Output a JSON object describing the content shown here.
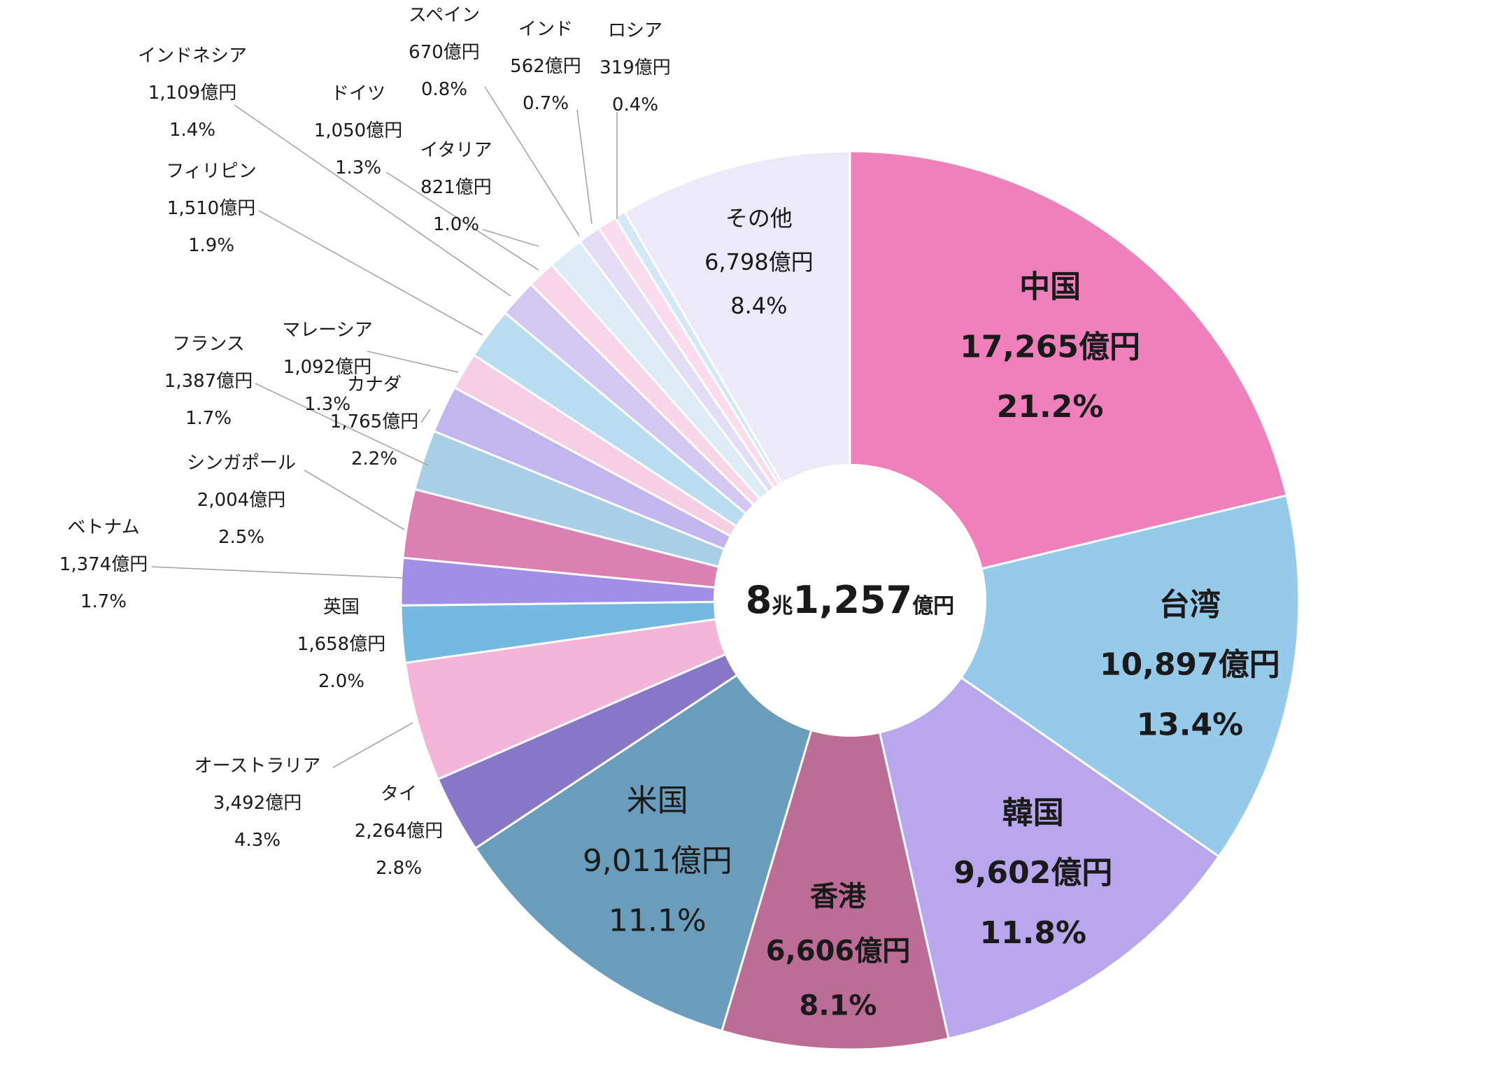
{
  "chart_data": {
    "type": "pie",
    "donut": true,
    "title": "",
    "center_label": {
      "main1": "8",
      "unit1": "兆",
      "main2": "1,257",
      "unit2": "億円"
    },
    "slices": [
      {
        "name": "中国",
        "value": 17265,
        "value_label": "17,265億円",
        "percent": "21.2%",
        "color": "#ef80bc"
      },
      {
        "name": "台湾",
        "value": 10897,
        "value_label": "10,897億円",
        "percent": "13.4%",
        "color": "#96caea"
      },
      {
        "name": "韓国",
        "value": 9602,
        "value_label": "9,602億円",
        "percent": "11.8%",
        "color": "#b8a7ec"
      },
      {
        "name": "香港",
        "value": 6606,
        "value_label": "6,606億円",
        "percent": "8.1%",
        "color": "#bb6d96"
      },
      {
        "name": "米国",
        "value": 9011,
        "value_label": "9,011億円",
        "percent": "11.1%",
        "color": "#6a9cbb"
      },
      {
        "name": "タイ",
        "value": 2264,
        "value_label": "2,264億円",
        "percent": "2.8%",
        "color": "#8876c6"
      },
      {
        "name": "オーストラリア",
        "value": 3492,
        "value_label": "3,492億円",
        "percent": "4.3%",
        "color": "#f4b5d9"
      },
      {
        "name": "英国",
        "value": 1658,
        "value_label": "1,658億円",
        "percent": "2.0%",
        "color": "#74b9e0"
      },
      {
        "name": "ベトナム",
        "value": 1374,
        "value_label": "1,374億円",
        "percent": "1.7%",
        "color": "#a18ee7"
      },
      {
        "name": "シンガポール",
        "value": 2004,
        "value_label": "2,004億円",
        "percent": "2.5%",
        "color": "#db80b2"
      },
      {
        "name": "カナダ",
        "value": 1765,
        "value_label": "1,765億円",
        "percent": "2.2%",
        "color": "#a9cfe7"
      },
      {
        "name": "フランス",
        "value": 1387,
        "value_label": "1,387億円",
        "percent": "1.7%",
        "color": "#c2b6ef"
      },
      {
        "name": "マレーシア",
        "value": 1092,
        "value_label": "1,092億円",
        "percent": "1.3%",
        "color": "#f6cfe4"
      },
      {
        "name": "フィリピン",
        "value": 1510,
        "value_label": "1,510億円",
        "percent": "1.9%",
        "color": "#b9dcf1"
      },
      {
        "name": "インドネシア",
        "value": 1109,
        "value_label": "1,109億円",
        "percent": "1.4%",
        "color": "#d2c8f1"
      },
      {
        "name": "イタリア",
        "value": 821,
        "value_label": "821億円",
        "percent": "1.0%",
        "color": "#f8d6e8"
      },
      {
        "name": "ドイツ",
        "value": 1050,
        "value_label": "1,050億円",
        "percent": "1.3%",
        "color": "#dcebf6"
      },
      {
        "name": "スペイン",
        "value": 670,
        "value_label": "670億円",
        "percent": "0.8%",
        "color": "#e2dcf4"
      },
      {
        "name": "インド",
        "value": 562,
        "value_label": "562億円",
        "percent": "0.7%",
        "color": "#fadcec"
      },
      {
        "name": "ロシア",
        "value": 319,
        "value_label": "319億円",
        "percent": "0.4%",
        "color": "#d2e8f6"
      },
      {
        "name": "その他",
        "value": 6798,
        "value_label": "6,798億円",
        "percent": "8.4%",
        "color": "#ece9f8"
      }
    ]
  }
}
